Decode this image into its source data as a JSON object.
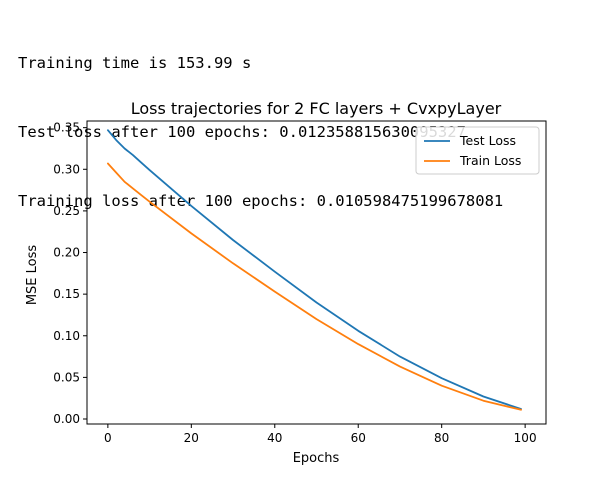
{
  "output": {
    "lines": [
      "Training time is 153.99 s",
      "Test loss after 100 epochs: 0.012358815630095327",
      "Training loss after 100 epochs: 0.010598475199678081"
    ]
  },
  "chart_data": {
    "type": "line",
    "title": "Loss trajectories for 2 FC layers + CvxpyLayer",
    "xlabel": "Epochs",
    "ylabel": "MSE Loss",
    "xlim": [
      -5,
      105
    ],
    "ylim": [
      -0.006,
      0.358
    ],
    "xticks": [
      0,
      20,
      40,
      60,
      80,
      100
    ],
    "xtick_labels": [
      "0",
      "20",
      "40",
      "60",
      "80",
      "100"
    ],
    "yticks": [
      0.0,
      0.05,
      0.1,
      0.15,
      0.2,
      0.25,
      0.3,
      0.35
    ],
    "ytick_labels": [
      "0.00",
      "0.05",
      "0.10",
      "0.15",
      "0.20",
      "0.25",
      "0.30",
      "0.35"
    ],
    "grid": false,
    "legend_position": "top-right",
    "x": [
      0,
      2,
      4,
      6,
      8,
      10,
      20,
      30,
      40,
      50,
      60,
      70,
      80,
      90,
      99
    ],
    "series": [
      {
        "name": "Test Loss",
        "color": "#1f77b4",
        "values": [
          0.347,
          0.335,
          0.325,
          0.317,
          0.308,
          0.299,
          0.256,
          0.215,
          0.177,
          0.14,
          0.106,
          0.075,
          0.049,
          0.027,
          0.012
        ]
      },
      {
        "name": "Train Loss",
        "color": "#ff7f0e",
        "values": [
          0.307,
          0.296,
          0.285,
          0.277,
          0.269,
          0.261,
          0.223,
          0.187,
          0.153,
          0.12,
          0.09,
          0.063,
          0.04,
          0.022,
          0.011
        ]
      }
    ]
  }
}
